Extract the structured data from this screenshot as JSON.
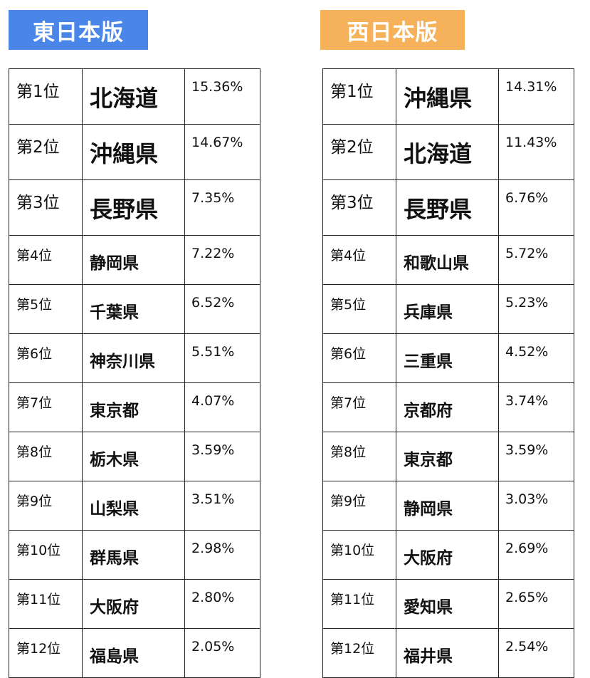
{
  "colors": {
    "east_badge": "#4a86e8",
    "west_badge": "#f6b25a"
  },
  "east": {
    "title": "東日本版",
    "rows": [
      {
        "rank": "第1位",
        "pref": "北海道",
        "pct": "15.36%"
      },
      {
        "rank": "第2位",
        "pref": "沖縄県",
        "pct": "14.67%"
      },
      {
        "rank": "第3位",
        "pref": "長野県",
        "pct": "7.35%"
      },
      {
        "rank": "第4位",
        "pref": "静岡県",
        "pct": "7.22%"
      },
      {
        "rank": "第5位",
        "pref": "千葉県",
        "pct": "6.52%"
      },
      {
        "rank": "第6位",
        "pref": "神奈川県",
        "pct": "5.51%"
      },
      {
        "rank": "第7位",
        "pref": "東京都",
        "pct": "4.07%"
      },
      {
        "rank": "第8位",
        "pref": "栃木県",
        "pct": "3.59%"
      },
      {
        "rank": "第9位",
        "pref": "山梨県",
        "pct": "3.51%"
      },
      {
        "rank": "第10位",
        "pref": "群馬県",
        "pct": "2.98%"
      },
      {
        "rank": "第11位",
        "pref": "大阪府",
        "pct": "2.80%"
      },
      {
        "rank": "第12位",
        "pref": "福島県",
        "pct": "2.05%"
      }
    ]
  },
  "west": {
    "title": "西日本版",
    "rows": [
      {
        "rank": "第1位",
        "pref": "沖縄県",
        "pct": "14.31%"
      },
      {
        "rank": "第2位",
        "pref": "北海道",
        "pct": "11.43%"
      },
      {
        "rank": "第3位",
        "pref": "長野県",
        "pct": "6.76%"
      },
      {
        "rank": "第4位",
        "pref": "和歌山県",
        "pct": "5.72%"
      },
      {
        "rank": "第5位",
        "pref": "兵庫県",
        "pct": "5.23%"
      },
      {
        "rank": "第6位",
        "pref": "三重県",
        "pct": "4.52%"
      },
      {
        "rank": "第7位",
        "pref": "京都府",
        "pct": "3.74%"
      },
      {
        "rank": "第8位",
        "pref": "東京都",
        "pct": "3.59%"
      },
      {
        "rank": "第9位",
        "pref": "静岡県",
        "pct": "3.03%"
      },
      {
        "rank": "第10位",
        "pref": "大阪府",
        "pct": "2.69%"
      },
      {
        "rank": "第11位",
        "pref": "愛知県",
        "pct": "2.65%"
      },
      {
        "rank": "第12位",
        "pref": "福井県",
        "pct": "2.54%"
      }
    ]
  }
}
